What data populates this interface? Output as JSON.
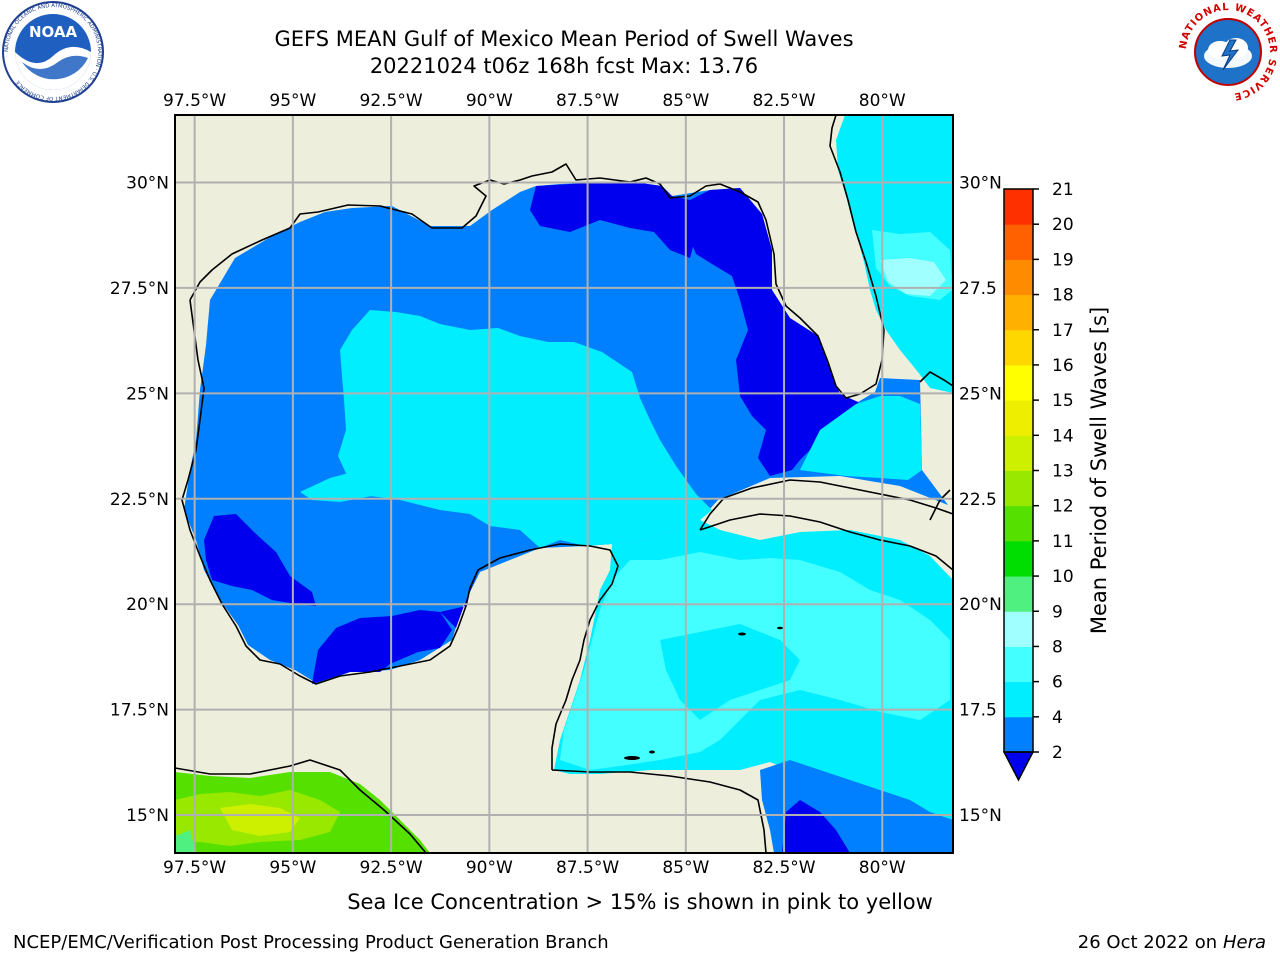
{
  "title": {
    "line1": "GEFS MEAN Gulf of Mexico Mean Period of Swell Waves",
    "line2": "20221024 t06z 168h fcst   Max: 13.76"
  },
  "logos": {
    "left": "NOAA",
    "left_ring": "NATIONAL OCEANIC AND ATMOSPHERIC ADMINISTRATION · U.S. DEPARTMENT OF COMMERCE",
    "right_ring": "NATIONAL WEATHER SERVICE"
  },
  "map": {
    "projection": "PlateCarree",
    "lon_range": [
      -98,
      -78.2
    ],
    "lat_range": [
      14.1,
      31.6
    ],
    "lon_ticks": [
      "97.5°W",
      "95°W",
      "92.5°W",
      "90°W",
      "87.5°W",
      "85°W",
      "82.5°W",
      "80°W"
    ],
    "lat_ticks_left": [
      "30°N",
      "27.5°N",
      "25°N",
      "22.5°N",
      "20°N",
      "17.5°N",
      "15°N"
    ],
    "lat_ticks_right": [
      "30°N",
      "27.5",
      "25°N",
      "22.5",
      "20°N",
      "17.5",
      "15°N"
    ],
    "land_color": "#eeeedd",
    "grid_color": "#b0b0b0"
  },
  "colorbar": {
    "label": "Mean Period of Swell Waves [s]",
    "ticks": [
      "2",
      "4",
      "6",
      "8",
      "9",
      "10",
      "11",
      "12",
      "13",
      "14",
      "15",
      "16",
      "17",
      "18",
      "19",
      "20",
      "21"
    ],
    "colors": [
      "#0080ff",
      "#00eeff",
      "#44ffff",
      "#a0ffff",
      "#50f080",
      "#00dd00",
      "#55e000",
      "#99e800",
      "#ccf000",
      "#eeee00",
      "#ffff00",
      "#ffd700",
      "#ffb000",
      "#ff8c00",
      "#ff6000",
      "#ff3000"
    ],
    "under_color": "#0000ee",
    "top_color": "#ff0000"
  },
  "note": "Sea Ice Concentration > 15% is shown in pink to yellow",
  "footer": {
    "left": "NCEP/EMC/Verification Post Processing Product Generation Branch",
    "right_prefix": "26 Oct 2022 on ",
    "right_host": "Hera"
  }
}
